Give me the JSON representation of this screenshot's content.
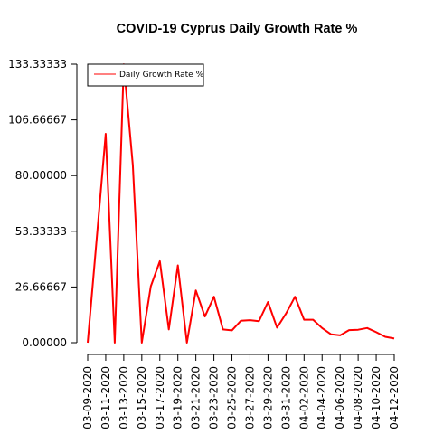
{
  "chart_data": {
    "type": "line",
    "title": "COVID-19 Cyprus Daily Growth Rate %",
    "xlabel": "",
    "ylabel": "",
    "x": [
      "03-09-2020",
      "03-10-2020",
      "03-11-2020",
      "03-12-2020",
      "03-13-2020",
      "03-14-2020",
      "03-15-2020",
      "03-16-2020",
      "03-17-2020",
      "03-18-2020",
      "03-19-2020",
      "03-20-2020",
      "03-21-2020",
      "03-22-2020",
      "03-23-2020",
      "03-24-2020",
      "03-25-2020",
      "03-26-2020",
      "03-27-2020",
      "03-28-2020",
      "03-29-2020",
      "03-30-2020",
      "03-31-2020",
      "04-01-2020",
      "04-02-2020",
      "04-03-2020",
      "04-04-2020",
      "04-05-2020",
      "04-06-2020",
      "04-07-2020",
      "04-08-2020",
      "04-09-2020",
      "04-10-2020",
      "04-11-2020",
      "04-12-2020"
    ],
    "x_tick_labels": [
      "03-09-2020",
      "03-11-2020",
      "03-13-2020",
      "03-15-2020",
      "03-17-2020",
      "03-19-2020",
      "03-21-2020",
      "03-23-2020",
      "03-25-2020",
      "03-27-2020",
      "03-29-2020",
      "03-31-2020",
      "04-02-2020",
      "04-04-2020",
      "04-06-2020",
      "04-08-2020",
      "04-10-2020",
      "04-12-2020"
    ],
    "y_ticks": [
      0,
      26.66667,
      53.33333,
      80,
      106.66667,
      133.33333
    ],
    "y_tick_labels": [
      "0.00000",
      "26.66667",
      "53.33333",
      "80.00000",
      "106.66667",
      "133.33333"
    ],
    "ylim": [
      0,
      133.33333
    ],
    "series": [
      {
        "name": "Daily Growth Rate %",
        "color": "#ff0000",
        "values": [
          0,
          50,
          100,
          0,
          133.3,
          85,
          0,
          27,
          39,
          6.3,
          37,
          0,
          25,
          12.5,
          22,
          6.3,
          5.9,
          10.5,
          10.8,
          10.3,
          19.5,
          7.2,
          14,
          22,
          11,
          11,
          7,
          4,
          3.5,
          6,
          6.2,
          7,
          5,
          2.8,
          2
        ]
      }
    ],
    "legend": {
      "position": "top-left",
      "entries": [
        "Daily Growth Rate %"
      ]
    },
    "grid": false
  }
}
